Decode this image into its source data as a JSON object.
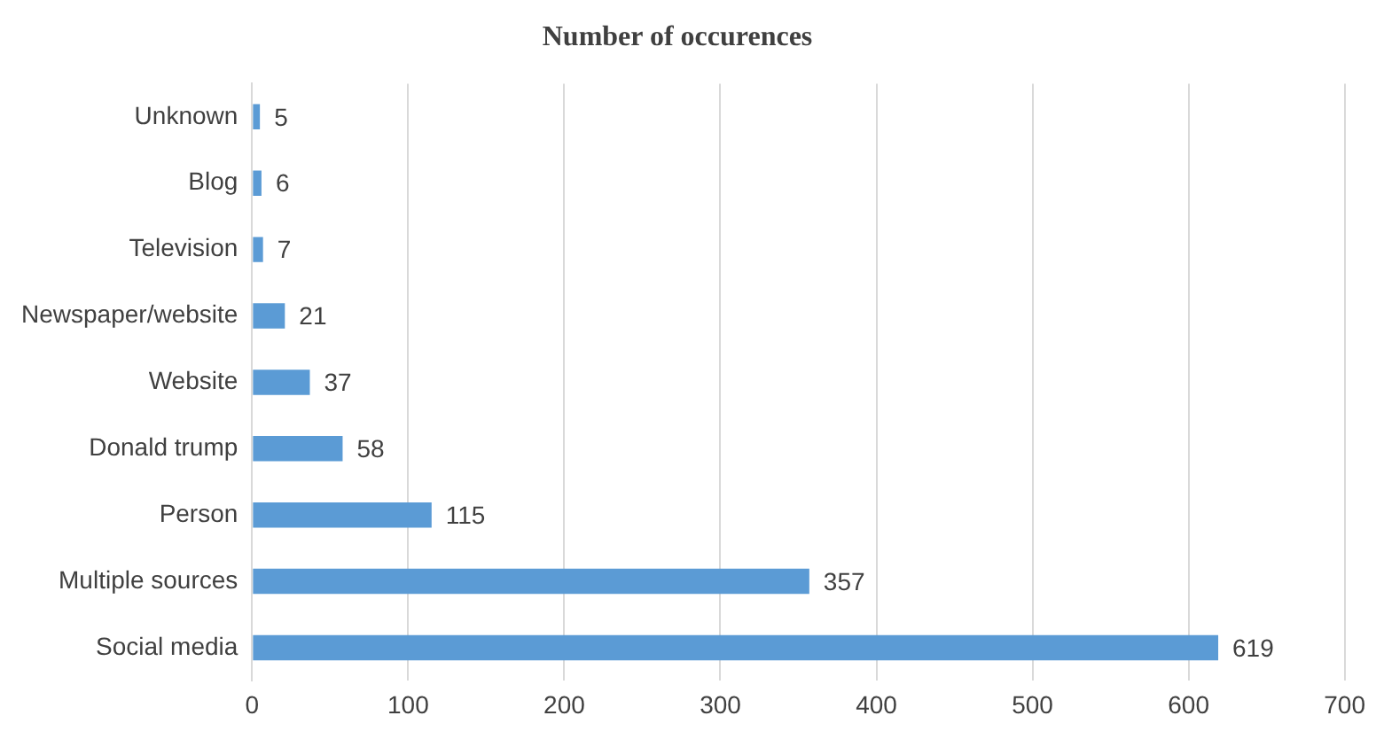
{
  "chart_data": {
    "type": "bar",
    "orientation": "horizontal",
    "title": "Number of occurences",
    "categories": [
      "Unknown",
      "Blog",
      "Television",
      "Newspaper/website",
      "Website",
      "Donald trump",
      "Person",
      "Multiple sources",
      "Social media"
    ],
    "values": [
      5,
      6,
      7,
      21,
      37,
      58,
      115,
      357,
      619
    ],
    "color": "#5b9bd5",
    "xlim": [
      0,
      700
    ],
    "xticks": [
      0,
      100,
      200,
      300,
      400,
      500,
      600,
      700
    ],
    "grid": "x",
    "data_labels": true
  }
}
